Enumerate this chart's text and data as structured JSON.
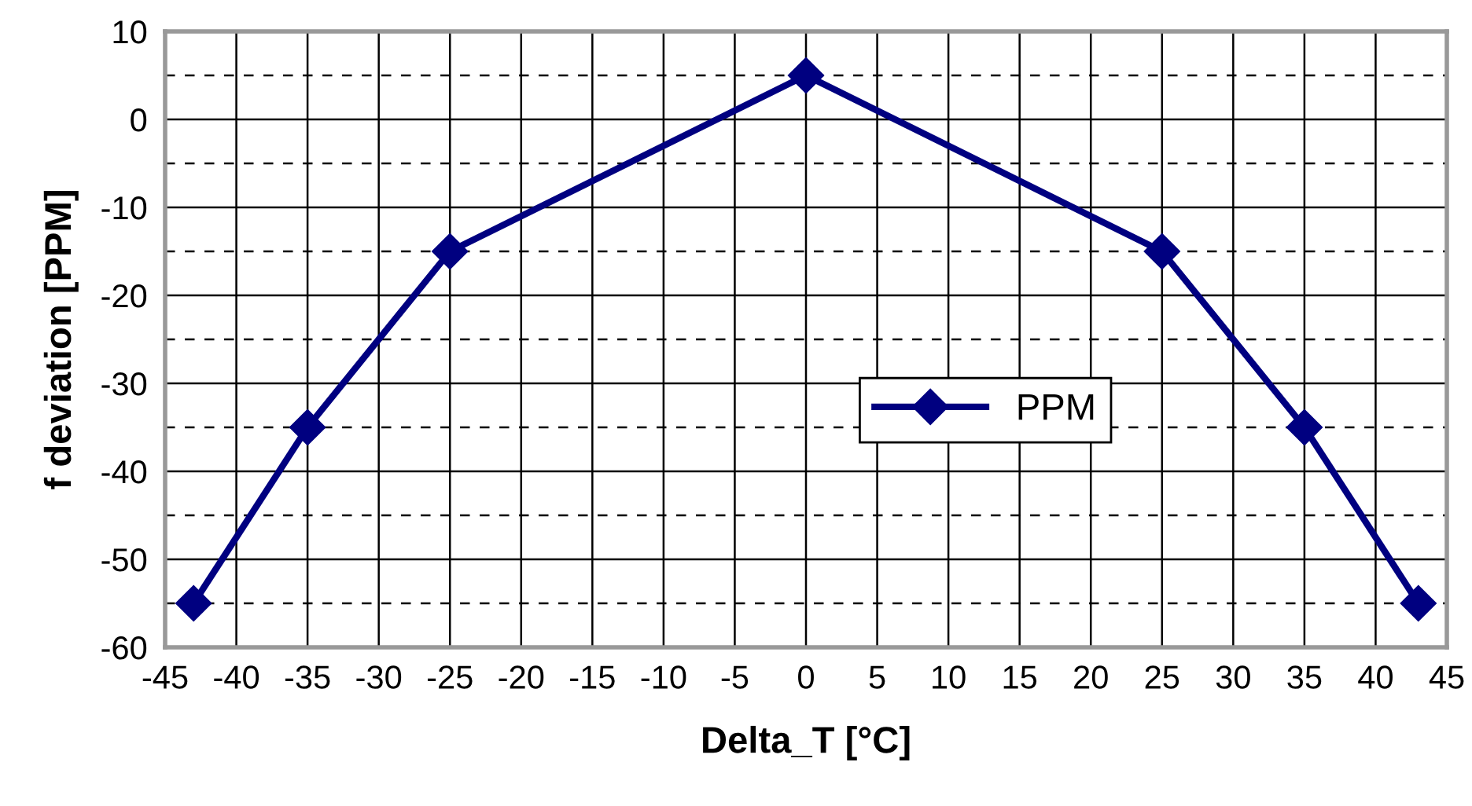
{
  "chart_data": {
    "type": "line",
    "xlabel": "Delta_T [°C]",
    "ylabel": "f deviation [PPM]",
    "x": [
      -43,
      -35,
      -25,
      0,
      25,
      35,
      43
    ],
    "series": [
      {
        "name": "PPM",
        "color": "#000080",
        "values": [
          -55,
          -35,
          -15,
          5,
          -15,
          -35,
          -55
        ]
      }
    ],
    "xlim": [
      -45,
      45
    ],
    "xticks": [
      -45,
      -40,
      -35,
      -30,
      -25,
      -20,
      -15,
      -10,
      -5,
      0,
      5,
      10,
      15,
      20,
      25,
      30,
      35,
      40,
      45
    ],
    "ylim": [
      -60,
      10
    ],
    "yticks": [
      -60,
      {
        "value": -55,
        "label": null
      },
      -50,
      {
        "value": -45,
        "label": null
      },
      -40,
      {
        "value": -35,
        "label": null
      },
      -30,
      {
        "value": -25,
        "label": null
      },
      -20,
      {
        "value": -15,
        "label": null
      },
      -10,
      {
        "value": -5,
        "label": null
      },
      0,
      {
        "value": 5,
        "label": null
      },
      10
    ],
    "grid": true,
    "legend": "center",
    "marker": "diamond",
    "line_style": "solid"
  }
}
